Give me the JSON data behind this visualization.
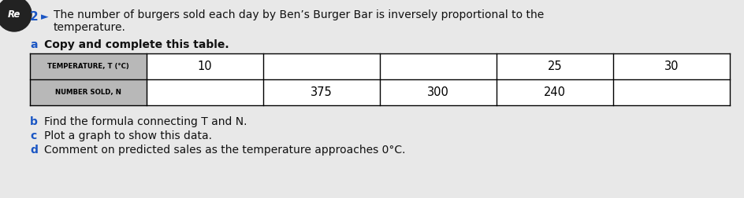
{
  "background_color": "#e8e8e8",
  "left_circle_color": "#222222",
  "number_label": "2",
  "arrow": "►",
  "label_color": "#1a56c4",
  "main_text_color": "#111111",
  "main_text_line1": "The number of burgers sold each day by Ben’s Burger Bar is inversely proportional to the",
  "main_text_line2": "temperature.",
  "part_a_label": "a",
  "part_a_text": "Copy and complete this table.",
  "part_b_label": "b",
  "part_b_text": "Find the formula connecting T and N.",
  "part_c_label": "c",
  "part_c_text": "Plot a graph to show this data.",
  "part_d_label": "d",
  "part_d_text": "Comment on predicted sales as the temperature approaches 0°C.",
  "table_header_bg": "#b8b8b8",
  "table_header_text_color": "#000000",
  "table_body_bg": "#ffffff",
  "table_col1_label": "TEMPERATURE, T (°C)",
  "table_col2_label": "NUMBER SOLD, N",
  "table_T_values": [
    "10",
    "",
    "",
    "25",
    "30"
  ],
  "table_N_values": [
    "",
    "375",
    "300",
    "240",
    ""
  ],
  "main_font_size": 10.0,
  "part_font_size": 10.0,
  "table_header_font_size": 6.2,
  "table_body_font_size": 10.5,
  "re_text": "Re"
}
